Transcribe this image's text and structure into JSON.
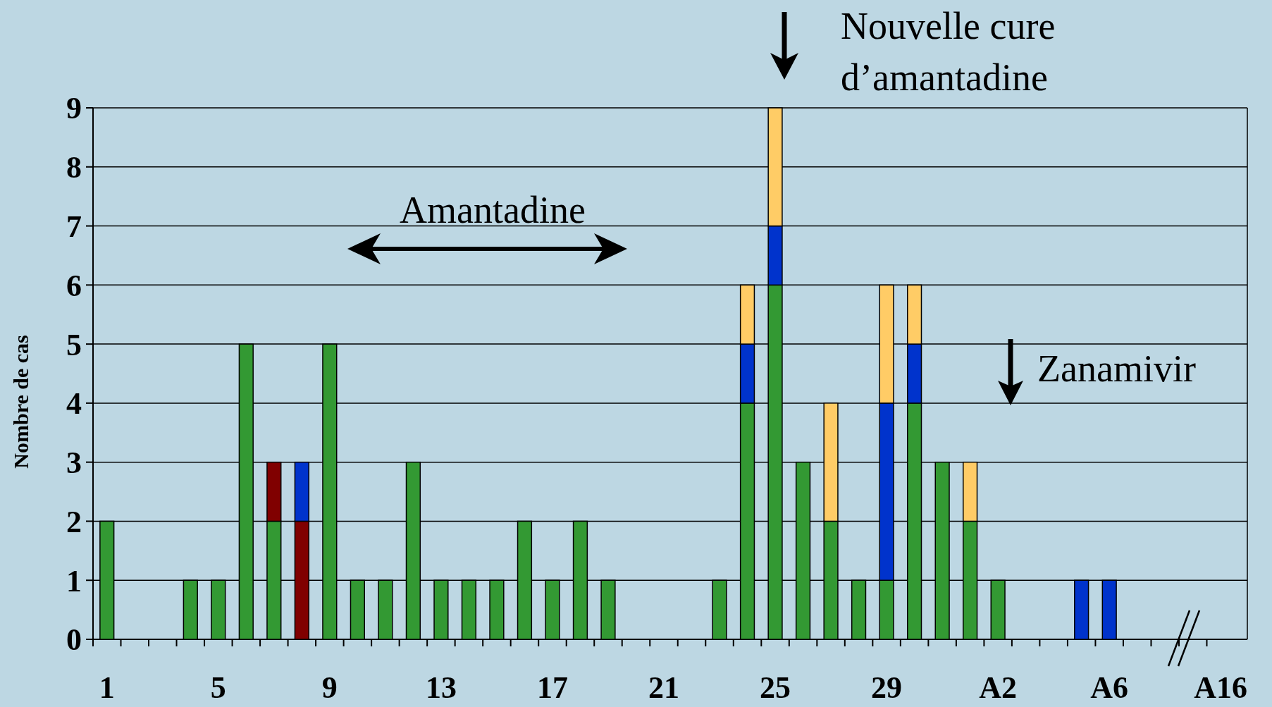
{
  "chart_data": {
    "type": "bar",
    "stacked": true,
    "ylabel": "Nombre de cas",
    "categories": [
      "1",
      null,
      null,
      null,
      "5",
      null,
      null,
      null,
      "9",
      null,
      null,
      null,
      "13",
      null,
      null,
      null,
      "17",
      null,
      null,
      null,
      "21",
      null,
      null,
      null,
      "25",
      null,
      null,
      null,
      "29",
      null,
      null,
      null,
      "A2",
      null,
      null,
      null,
      "A6",
      null,
      null,
      null,
      "A16"
    ],
    "series": [
      {
        "color": "#339933",
        "values": [
          2,
          0,
          0,
          1,
          1,
          5,
          2,
          0,
          5,
          1,
          1,
          3,
          1,
          1,
          1,
          2,
          1,
          2,
          1,
          0,
          0,
          0,
          1,
          4,
          6,
          3,
          2,
          1,
          1,
          4,
          3,
          2,
          1,
          0,
          0,
          0,
          0,
          0,
          0,
          0,
          0
        ]
      },
      {
        "color": "#800000",
        "values": [
          0,
          0,
          0,
          0,
          0,
          0,
          1,
          2,
          0,
          0,
          0,
          0,
          0,
          0,
          0,
          0,
          0,
          0,
          0,
          0,
          0,
          0,
          0,
          0,
          0,
          0,
          0,
          0,
          0,
          0,
          0,
          0,
          0,
          0,
          0,
          0,
          0,
          0,
          0,
          0,
          0
        ]
      },
      {
        "color": "#0033cc",
        "values": [
          0,
          0,
          0,
          0,
          0,
          0,
          0,
          1,
          0,
          0,
          0,
          0,
          0,
          0,
          0,
          0,
          0,
          0,
          0,
          0,
          0,
          0,
          0,
          1,
          1,
          0,
          0,
          0,
          3,
          1,
          0,
          0,
          0,
          0,
          0,
          1,
          1,
          0,
          0,
          0,
          0
        ]
      },
      {
        "color": "#ffcc66",
        "values": [
          0,
          0,
          0,
          0,
          0,
          0,
          0,
          0,
          0,
          0,
          0,
          0,
          0,
          0,
          0,
          0,
          0,
          0,
          0,
          0,
          0,
          0,
          0,
          1,
          2,
          0,
          2,
          0,
          2,
          1,
          0,
          1,
          0,
          0,
          0,
          0,
          0,
          0,
          0,
          0,
          0
        ]
      }
    ],
    "ylim": [
      0,
      9
    ],
    "yticks": [
      0,
      1,
      2,
      3,
      4,
      5,
      6,
      7,
      8,
      9
    ],
    "grid": "y",
    "annotations": [
      "Amantadine",
      "Nouvelle cure d’amantadine",
      "Zanamivir"
    ]
  }
}
